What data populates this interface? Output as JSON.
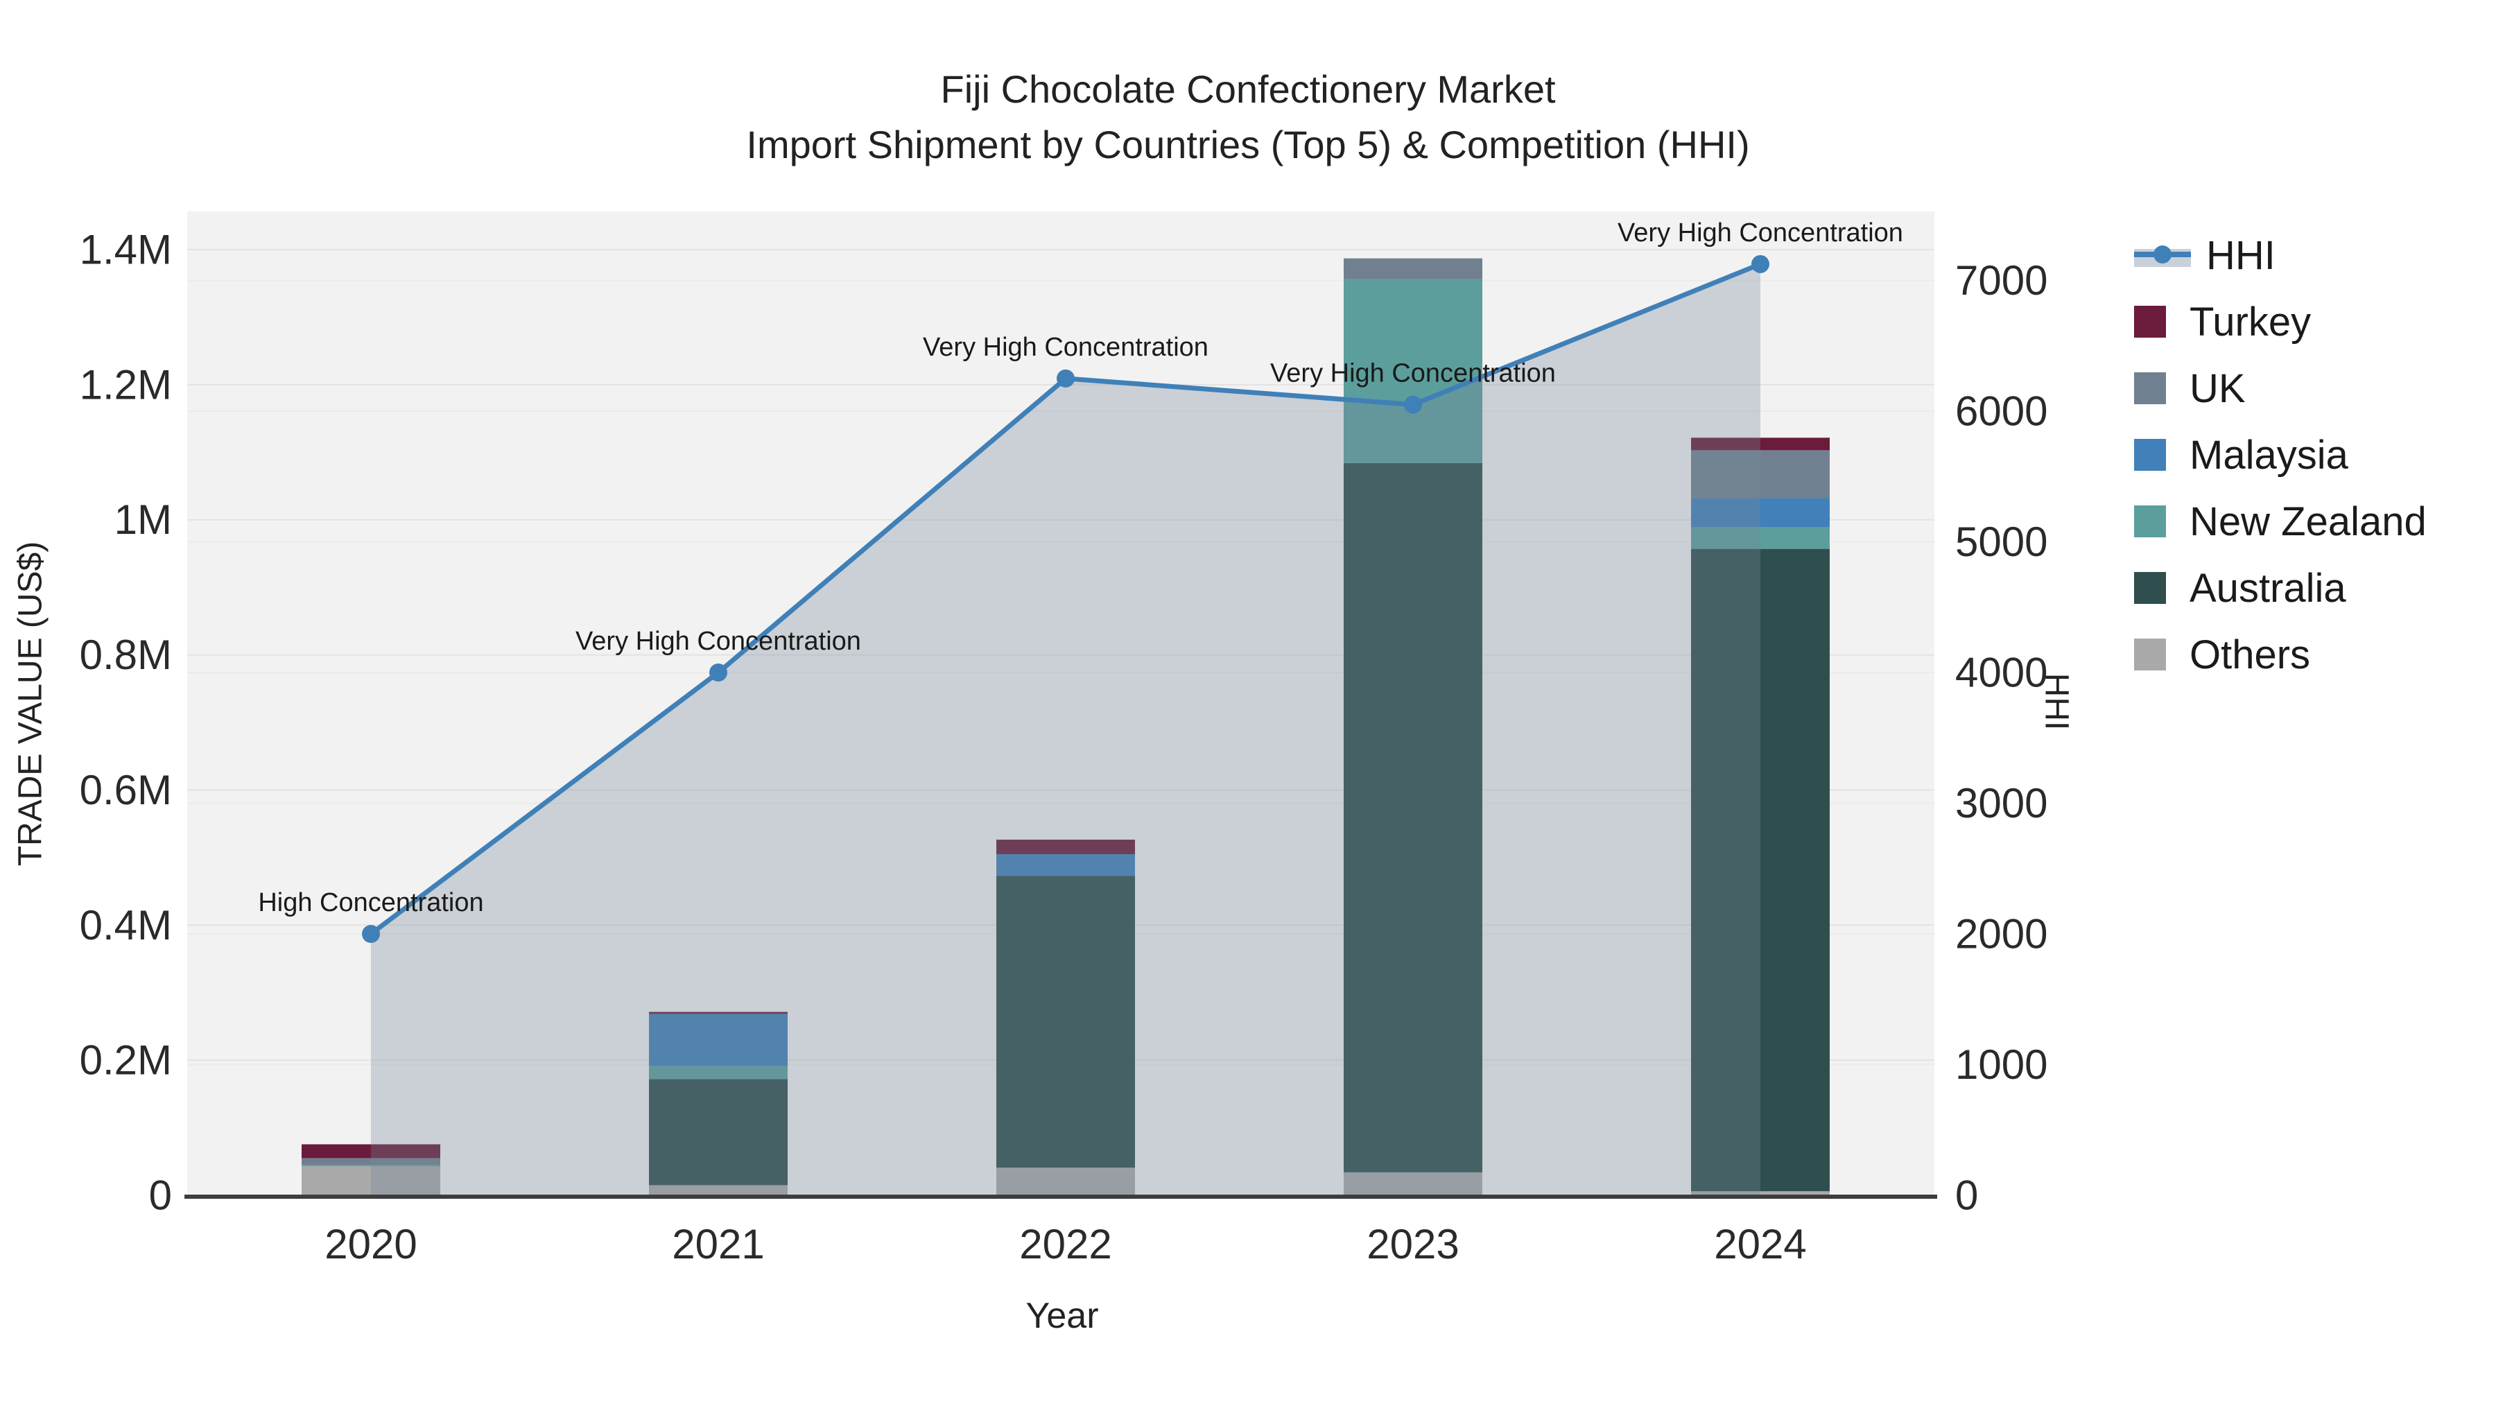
{
  "title": {
    "line1": "Fiji Chocolate Confectionery Market",
    "line2": "Import Shipment by Countries (Top 5) & Competition (HHI)"
  },
  "axes": {
    "x": {
      "title": "Year",
      "ticks": [
        "2020",
        "2021",
        "2022",
        "2023",
        "2024"
      ]
    },
    "y_left": {
      "title": "TRADE VALUE (US$)",
      "tick_labels": [
        "0",
        "0.2M",
        "0.4M",
        "0.6M",
        "0.8M",
        "1M",
        "1.2M",
        "1.4M"
      ],
      "tick_values": [
        0,
        200000,
        400000,
        600000,
        800000,
        1000000,
        1200000,
        1400000
      ]
    },
    "y_right": {
      "title": "HHI",
      "tick_labels": [
        "0",
        "1000",
        "2000",
        "3000",
        "4000",
        "5000",
        "6000",
        "7000"
      ],
      "tick_values": [
        0,
        1000,
        2000,
        3000,
        4000,
        5000,
        6000,
        7000
      ]
    }
  },
  "colors": {
    "hhi_line": "#4080B8",
    "area_fill": "rgba(119,136,153,0.32)",
    "area_solid": "#C9D0DA",
    "plot_bg": "#F2F2F2",
    "grid_left": "#E3E3E3",
    "grid_right": "#EBEBEB",
    "axis_line": "#3D3D3D",
    "turkey": "#6B1B3B",
    "uk": "#708090",
    "malaysia": "#4180B8",
    "new_zealand": "#5C9E9C",
    "australia": "#2F4F4F",
    "others": "#A9A9A9"
  },
  "legend": {
    "items": [
      {
        "label": "HHI",
        "type": "line",
        "color": "#4080B8"
      },
      {
        "label": "Turkey",
        "type": "box",
        "color": "#6B1B3B"
      },
      {
        "label": "UK",
        "type": "box",
        "color": "#708090"
      },
      {
        "label": "Malaysia",
        "type": "box",
        "color": "#4180B8"
      },
      {
        "label": "New Zealand",
        "type": "box",
        "color": "#5C9E9C"
      },
      {
        "label": "Australia",
        "type": "box",
        "color": "#2F4F4F"
      },
      {
        "label": "Others",
        "type": "box",
        "color": "#A9A9A9"
      }
    ]
  },
  "chart_data": {
    "type": "combo: stacked bar (trade value US$) + line (HHI) with area fill",
    "title": "Fiji Chocolate Confectionery Market",
    "subtitle": "Import Shipment by Countries (Top 5) & Competition (HHI)",
    "xlabel": "Year",
    "ylabel_left": "TRADE VALUE (US$)",
    "ylabel_right": "HHI",
    "categories": [
      "2020",
      "2021",
      "2022",
      "2023",
      "2024"
    ],
    "ylim_left": [
      0,
      1456000
    ],
    "ylim_right": [
      0,
      7530
    ],
    "grid": true,
    "legend_position": "right",
    "bar_series_bottom_to_top": [
      {
        "name": "Others",
        "color_key": "others",
        "values": [
          43000,
          15000,
          41000,
          34000,
          6000
        ]
      },
      {
        "name": "Australia",
        "color_key": "australia",
        "values": [
          0,
          157000,
          432000,
          1050000,
          951000
        ]
      },
      {
        "name": "New Zealand",
        "color_key": "new_zealand",
        "values": [
          2000,
          19500,
          0,
          272000,
          32000
        ]
      },
      {
        "name": "Malaysia",
        "color_key": "malaysia",
        "values": [
          0,
          77000,
          32000,
          0,
          43000
        ]
      },
      {
        "name": "UK",
        "color_key": "uk",
        "values": [
          10000,
          0,
          0,
          31000,
          71000
        ]
      },
      {
        "name": "Turkey",
        "color_key": "turkey",
        "values": [
          20500,
          3000,
          21500,
          0,
          18500
        ]
      }
    ],
    "bar_totals": [
      75500,
      271500,
      526500,
      1387000,
      1121500
    ],
    "line_series": {
      "name": "HHI",
      "values": [
        2000,
        4000,
        6250,
        6050,
        7125
      ]
    },
    "annotations": [
      {
        "year": "2020",
        "text": "High Concentration"
      },
      {
        "year": "2021",
        "text": "Very High Concentration"
      },
      {
        "year": "2022",
        "text": "Very High Concentration"
      },
      {
        "year": "2023",
        "text": "Very High Concentration"
      },
      {
        "year": "2024",
        "text": "Very High Concentration"
      }
    ]
  }
}
